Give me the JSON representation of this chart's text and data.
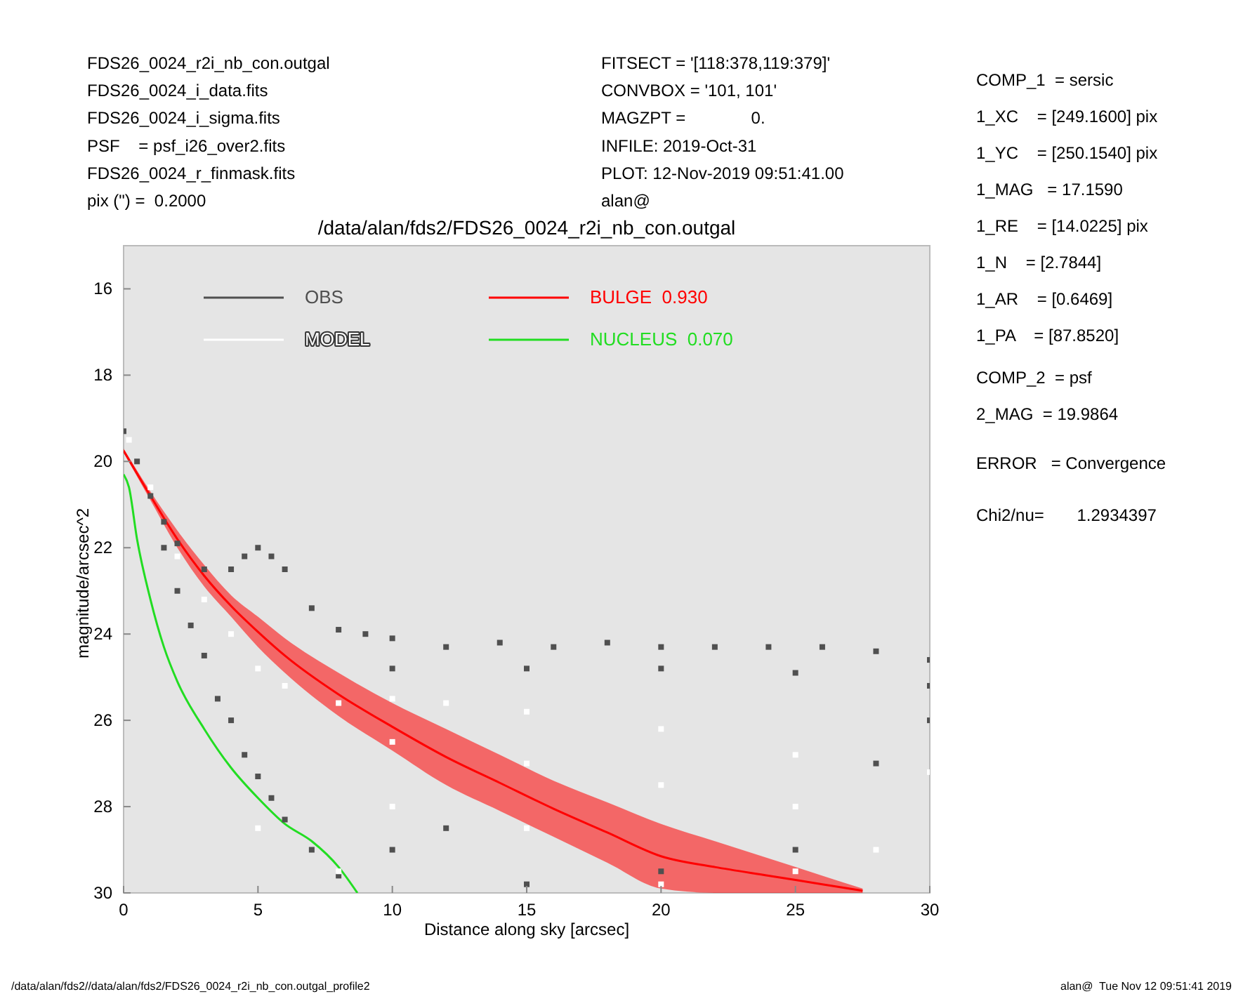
{
  "chart_data": {
    "type": "scatter",
    "title": "/data/alan/fds2/FDS26_0024_r2i_nb_con.outgal",
    "xlabel": "Distance along sky [arcsec]",
    "ylabel": "magnitude/arcsec^2",
    "xlim": [
      0,
      30
    ],
    "xticks": [
      0,
      5,
      10,
      15,
      20,
      25,
      30
    ],
    "ylim": [
      30,
      15
    ],
    "yticks": [
      16,
      18,
      20,
      22,
      24,
      26,
      28,
      30
    ],
    "grid": false,
    "legend": "top",
    "marker": "square",
    "series": [
      {
        "name": "OBS",
        "color": "#505050",
        "x": [
          0,
          0.5,
          1,
          1.5,
          2,
          3,
          4,
          4.5,
          5,
          5.5,
          6,
          7,
          8,
          9,
          10,
          12,
          14,
          16,
          18,
          20,
          22,
          24,
          26,
          28,
          30,
          10,
          15,
          20,
          25,
          30,
          1.5,
          2,
          2.5,
          3,
          3.5,
          4,
          4.5,
          5,
          5.5,
          6,
          7,
          8,
          10,
          12,
          15,
          20,
          25,
          28,
          30
        ],
        "values": [
          19.3,
          20.0,
          20.8,
          21.4,
          21.9,
          22.5,
          22.5,
          22.2,
          22.0,
          22.2,
          22.5,
          23.4,
          23.9,
          24.0,
          24.1,
          24.3,
          24.2,
          24.3,
          24.2,
          24.3,
          24.3,
          24.3,
          24.3,
          24.4,
          24.6,
          24.8,
          24.8,
          24.8,
          24.9,
          25.2,
          22.0,
          23.0,
          23.8,
          24.5,
          25.5,
          26.0,
          26.8,
          27.3,
          27.8,
          28.3,
          29.0,
          29.6,
          29.0,
          28.5,
          29.8,
          29.5,
          29.0,
          27.0,
          26.0
        ]
      },
      {
        "name": "MODEL",
        "color": "#ffffff",
        "x": [
          0.2,
          1,
          2,
          3,
          4,
          5,
          6,
          8,
          10,
          12,
          15,
          20,
          25,
          30,
          5,
          8,
          10,
          15,
          20,
          25,
          10,
          15,
          20,
          25,
          28
        ],
        "values": [
          19.5,
          20.6,
          22.2,
          23.2,
          24.0,
          24.8,
          25.2,
          25.6,
          25.5,
          25.6,
          25.8,
          26.2,
          26.8,
          27.2,
          28.5,
          29.5,
          28.0,
          28.5,
          29.8,
          29.5,
          26.5,
          27.0,
          27.5,
          28.0,
          29.0
        ]
      },
      {
        "name": "BULGE  0.930",
        "color": "#ff0000",
        "type": "line",
        "marker": "none",
        "x": [
          0,
          1,
          2,
          3,
          4,
          5,
          6,
          8,
          10,
          12,
          14,
          16,
          18,
          20,
          22,
          24,
          26,
          27.5
        ],
        "values": [
          19.75,
          20.8,
          21.8,
          22.65,
          23.35,
          23.95,
          24.5,
          25.4,
          26.15,
          26.85,
          27.45,
          28.05,
          28.6,
          29.15,
          29.4,
          29.6,
          29.8,
          29.95
        ],
        "lower": [
          19.7,
          20.7,
          21.6,
          22.4,
          23.1,
          23.6,
          24.1,
          24.9,
          25.6,
          26.2,
          26.8,
          27.4,
          27.9,
          28.4,
          28.8,
          29.2,
          29.6,
          29.9
        ],
        "upper": [
          19.8,
          20.9,
          22.0,
          22.9,
          23.6,
          24.3,
          24.9,
          25.9,
          26.7,
          27.5,
          28.1,
          28.7,
          29.3,
          29.9,
          30,
          30,
          30,
          30
        ]
      },
      {
        "name": "NUCLEUS  0.070",
        "color": "#22dd22",
        "type": "line",
        "marker": "none",
        "x": [
          0,
          0.2,
          0.5,
          1,
          1.5,
          2,
          3,
          4,
          5,
          6,
          7,
          8,
          8.7
        ],
        "values": [
          20.3,
          20.6,
          21.8,
          23.2,
          24.3,
          25.1,
          26.2,
          27.1,
          27.8,
          28.4,
          28.8,
          29.4,
          30
        ]
      }
    ],
    "annotations": [
      "FDS26_0024_r2i_nb_con.outgal",
      "FDS26_0024_i_data.fits",
      "FDS26_0024_i_sigma.fits",
      "PSF    = psf_i26_over2.fits",
      "FDS26_0024_r_finmask.fits",
      "pix (\") =  0.2000",
      "FITSECT = '[118:378,119:379]'",
      "CONVBOX = '101, 101'",
      "MAGZPT =              0.",
      "INFILE: 2019-Oct-31",
      "PLOT: 12-Nov-2019 09:51:41.00",
      "alan@",
      "COMP_1  = sersic",
      "1_XC    = [249.1600] pix",
      "1_YC    = [250.1540] pix",
      "1_MAG   = 17.1590",
      "1_RE    = [14.0225] pix",
      "1_N    = [2.7844]",
      "1_AR    = [0.6469]",
      "1_PA    = [87.8520]",
      "COMP_2  = psf",
      "2_MAG  = 19.9864",
      "ERROR   = Convergence",
      "Chi2/nu=       1.2934397",
      "/data/alan/fds2//data/alan/fds2/FDS26_0024_r2i_nb_con.outgal_profile2",
      "alan@  Tue Nov 12 09:51:41 2019"
    ]
  }
}
